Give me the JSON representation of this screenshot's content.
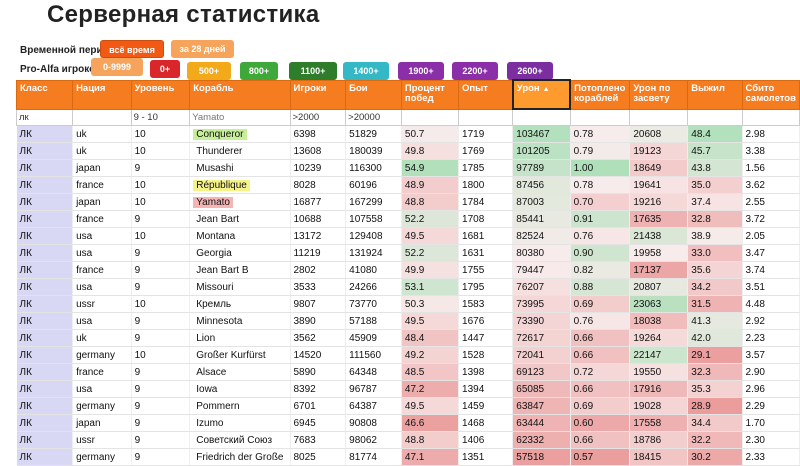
{
  "page": {
    "title": "Серверная статистика"
  },
  "period": {
    "label": "Временной период:",
    "buttons": [
      {
        "label": "всё время",
        "color": "#f05a14"
      },
      {
        "label": "за 28 дней",
        "color": "#f6a45c"
      }
    ]
  },
  "alfa": {
    "label": "Pro-Alfa игроков:",
    "buttons": [
      {
        "label": "0-9999",
        "color": "#f6a45c"
      },
      {
        "label": "0+",
        "color": "#d9262b"
      },
      {
        "label": "500+",
        "color": "#f2a91a"
      },
      {
        "label": "800+",
        "color": "#3fa83a"
      },
      {
        "label": "1100+",
        "color": "#2d7d2a"
      },
      {
        "label": "1400+",
        "color": "#35b8c6"
      },
      {
        "label": "1900+",
        "color": "#8b2fa8"
      },
      {
        "label": "2200+",
        "color": "#8b2fa8"
      },
      {
        "label": "2600+",
        "color": "#7a2ea0"
      }
    ]
  },
  "table": {
    "headers": [
      "Класс",
      "Нация",
      "Уровень",
      "Корабль",
      "Игроки",
      "Бои",
      "Процент побед",
      "Опыт",
      "Урон",
      "Потоплено кораблей",
      "Урон по засвету",
      "Выжил",
      "Сбито самолетов"
    ],
    "sorted_column": "Урон",
    "filters": [
      "лк",
      "",
      "9 - 10",
      "Yamato",
      ">2000",
      ">20000",
      "",
      "",
      "",
      "",
      "",
      "",
      ""
    ],
    "rows": [
      [
        "ЛК",
        "uk",
        "10",
        "Conqueror",
        "6398",
        "51829",
        "50.7",
        "1719",
        "103467",
        "0.78",
        "20608",
        "48.4",
        "2.98"
      ],
      [
        "ЛК",
        "uk",
        "10",
        "Thunderer",
        "13608",
        "180039",
        "49.8",
        "1769",
        "101205",
        "0.79",
        "19123",
        "45.7",
        "3.38"
      ],
      [
        "ЛК",
        "japan",
        "9",
        "Musashi",
        "10239",
        "116300",
        "54.9",
        "1785",
        "97789",
        "1.00",
        "18649",
        "43.8",
        "1.56"
      ],
      [
        "ЛК",
        "france",
        "10",
        "République",
        "8028",
        "60196",
        "48.9",
        "1800",
        "87456",
        "0.78",
        "19641",
        "35.0",
        "3.62"
      ],
      [
        "ЛК",
        "japan",
        "10",
        "Yamato",
        "16877",
        "167299",
        "48.8",
        "1784",
        "87003",
        "0.70",
        "19216",
        "37.4",
        "2.55"
      ],
      [
        "ЛК",
        "france",
        "9",
        "Jean Bart",
        "10688",
        "107558",
        "52.2",
        "1708",
        "85441",
        "0.91",
        "17635",
        "32.8",
        "3.72"
      ],
      [
        "ЛК",
        "usa",
        "10",
        "Montana",
        "13172",
        "129408",
        "49.5",
        "1681",
        "82524",
        "0.76",
        "21438",
        "38.9",
        "2.05"
      ],
      [
        "ЛК",
        "usa",
        "9",
        "Georgia",
        "11219",
        "131924",
        "52.2",
        "1631",
        "80380",
        "0.90",
        "19958",
        "33.0",
        "3.47"
      ],
      [
        "ЛК",
        "france",
        "9",
        "Jean Bart B",
        "2802",
        "41080",
        "49.9",
        "1755",
        "79447",
        "0.82",
        "17137",
        "35.6",
        "3.74"
      ],
      [
        "ЛК",
        "usa",
        "9",
        "Missouri",
        "3533",
        "24266",
        "53.1",
        "1795",
        "76207",
        "0.88",
        "20807",
        "34.2",
        "3.51"
      ],
      [
        "ЛК",
        "ussr",
        "10",
        "Кремль",
        "9807",
        "73770",
        "50.3",
        "1583",
        "73995",
        "0.69",
        "23063",
        "31.5",
        "4.48"
      ],
      [
        "ЛК",
        "usa",
        "9",
        "Minnesota",
        "3890",
        "57188",
        "49.5",
        "1676",
        "73390",
        "0.76",
        "18038",
        "41.3",
        "2.92"
      ],
      [
        "ЛК",
        "uk",
        "9",
        "Lion",
        "3562",
        "45909",
        "48.4",
        "1447",
        "72617",
        "0.66",
        "19264",
        "42.0",
        "2.23"
      ],
      [
        "ЛК",
        "germany",
        "10",
        "Großer Kurfürst",
        "14520",
        "111560",
        "49.2",
        "1528",
        "72041",
        "0.66",
        "22147",
        "29.1",
        "3.57"
      ],
      [
        "ЛК",
        "france",
        "9",
        "Alsace",
        "5890",
        "64348",
        "48.5",
        "1398",
        "69123",
        "0.72",
        "19550",
        "32.3",
        "2.90"
      ],
      [
        "ЛК",
        "usa",
        "9",
        "Iowa",
        "8392",
        "96787",
        "47.2",
        "1394",
        "65085",
        "0.66",
        "17916",
        "35.3",
        "2.96"
      ],
      [
        "ЛК",
        "germany",
        "9",
        "Pommern",
        "6701",
        "64387",
        "49.5",
        "1459",
        "63847",
        "0.69",
        "19028",
        "28.9",
        "2.29"
      ],
      [
        "ЛК",
        "japan",
        "9",
        "Izumo",
        "6945",
        "90808",
        "46.6",
        "1468",
        "63444",
        "0.60",
        "17558",
        "34.4",
        "1.70"
      ],
      [
        "ЛК",
        "ussr",
        "9",
        "Советский Союз",
        "7683",
        "98062",
        "48.8",
        "1406",
        "62332",
        "0.66",
        "18786",
        "32.2",
        "2.30"
      ],
      [
        "ЛК",
        "germany",
        "9",
        "Friedrich der Große",
        "8025",
        "81774",
        "47.1",
        "1351",
        "57518",
        "0.57",
        "18415",
        "30.2",
        "2.33"
      ]
    ],
    "highlight": {
      "Conqueror": "hl-green",
      "République": "hl-yellow",
      "Yamato": "hl-pink"
    }
  }
}
